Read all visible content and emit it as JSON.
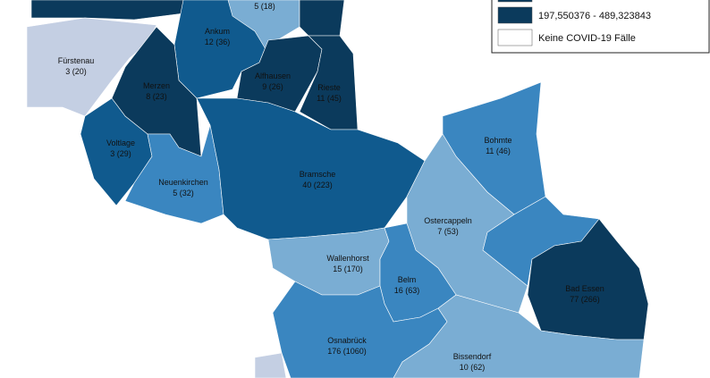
{
  "legend": {
    "items": [
      {
        "label": "197,550376 - 489,323843"
      },
      {
        "label": "Keine COVID-19 Fälle"
      }
    ]
  },
  "regions": [
    {
      "value": "5 (18)"
    },
    {
      "name": "Ankum",
      "value": "12 (36)"
    },
    {
      "name": "Fürstenau",
      "value": "3 (20)"
    },
    {
      "name": "Merzen",
      "value": "8 (23)"
    },
    {
      "name": "Alfhausen",
      "value": "9 (26)"
    },
    {
      "name": "Rieste",
      "value": "11 (45)"
    },
    {
      "name": "Voltlage",
      "value": "3 (29)"
    },
    {
      "name": "Neuenkirchen",
      "value": "5 (32)"
    },
    {
      "name": "Bramsche",
      "value": "40 (223)"
    },
    {
      "name": "Bohmte",
      "value": "11 (46)"
    },
    {
      "name": "Ostercappeln",
      "value": "7 (53)"
    },
    {
      "name": "Wallenhorst",
      "value": "15 (170)"
    },
    {
      "name": "Belm",
      "value": "16 (63)"
    },
    {
      "name": "Bad Essen",
      "value": "77 (266)"
    },
    {
      "name": "Osnabrück",
      "value": "176 (1060)"
    },
    {
      "name": "Bissendorf",
      "value": "10 (62)"
    }
  ]
}
